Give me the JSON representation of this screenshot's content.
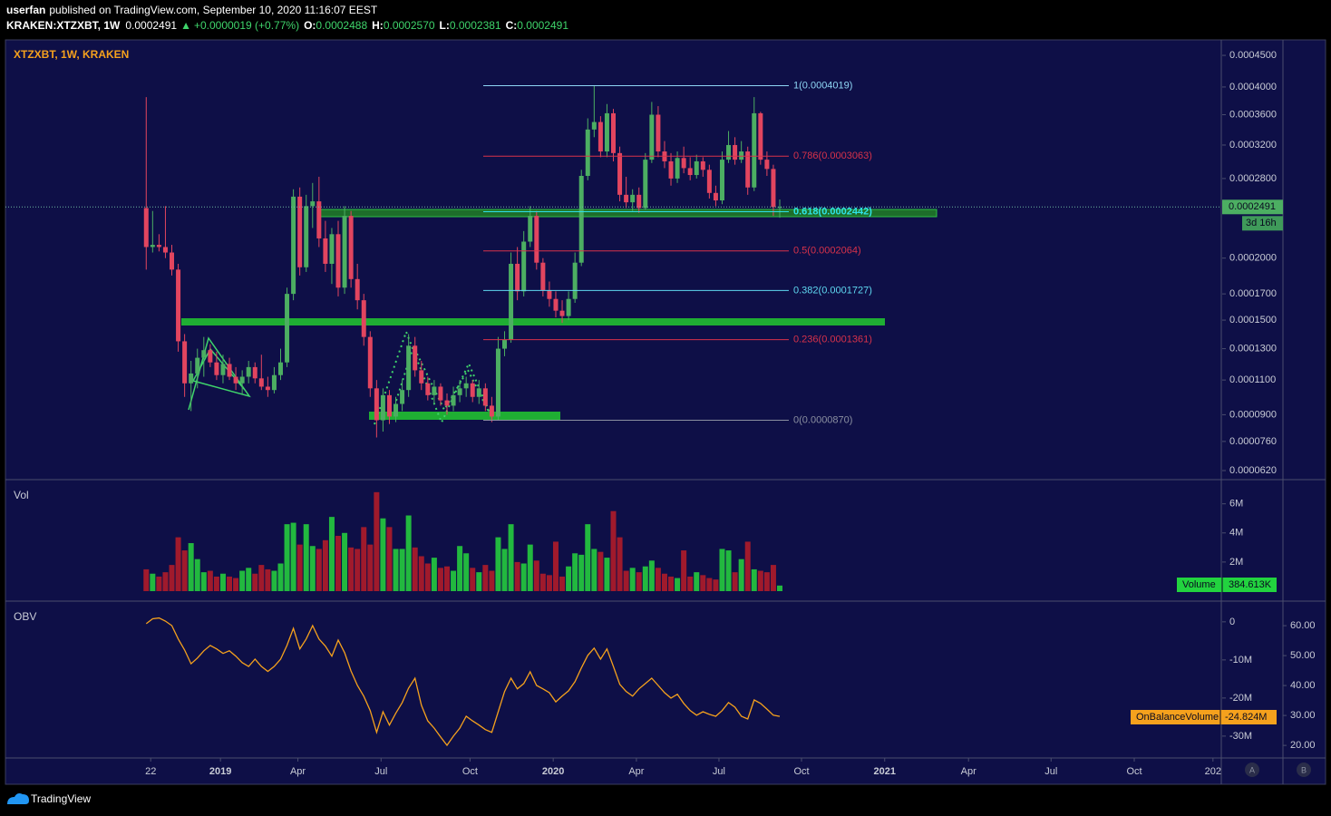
{
  "header": {
    "user": "userfan",
    "published": "published on TradingView.com, September 10, 2020 11:16:07 EEST",
    "symbol": "KRAKEN:XTZXBT, 1W",
    "last": "0.0002491",
    "arrow": "▲",
    "change": "+0.0000019 (+0.77%)",
    "ohlc": [
      {
        "key": "O:",
        "value": "0.0002488"
      },
      {
        "key": "H:",
        "value": "0.0002570"
      },
      {
        "key": "L:",
        "value": "0.0002381"
      },
      {
        "key": "C:",
        "value": "0.0002491"
      }
    ]
  },
  "chart_data": [
    {
      "type": "candlestick",
      "title": "XTZXBT, 1W, KRAKEN",
      "up_color": "#4cae62",
      "down_color": "#e2455f",
      "log_scale": true,
      "ohlc": [
        [
          0.000248,
          0.000385,
          0.00019,
          0.00021
        ],
        [
          0.00021,
          0.000245,
          0.000205,
          0.000212
        ],
        [
          0.000212,
          0.000222,
          0.000206,
          0.00021
        ],
        [
          0.00021,
          0.00025,
          0.0002,
          0.000205
        ],
        [
          0.000205,
          0.000212,
          0.000185,
          0.00019
        ],
        [
          0.00019,
          0.000195,
          0.000128,
          0.000135
        ],
        [
          0.000135,
          0.00014,
          0.0001,
          0.000108
        ],
        [
          0.000108,
          0.000122,
          9.2e-05,
          0.000114
        ],
        [
          0.000114,
          0.00013,
          0.000105,
          0.000124
        ],
        [
          0.000124,
          0.000138,
          0.000112,
          0.000129
        ],
        [
          0.000129,
          0.000133,
          0.000118,
          0.000121
        ],
        [
          0.000121,
          0.000128,
          0.00011,
          0.000113
        ],
        [
          0.000113,
          0.000126,
          0.000108,
          0.00012
        ],
        [
          0.00012,
          0.000124,
          0.00011,
          0.000112
        ],
        [
          0.000112,
          0.000118,
          0.000104,
          0.000108
        ],
        [
          0.000108,
          0.000116,
          0.000102,
          0.000112
        ],
        [
          0.000112,
          0.000122,
          0.000108,
          0.000118
        ],
        [
          0.000118,
          0.000121,
          0.000108,
          0.000111
        ],
        [
          0.000111,
          0.000126,
          0.000104,
          0.000106
        ],
        [
          0.000106,
          0.000112,
          0.0001,
          0.000104
        ],
        [
          0.000104,
          0.000118,
          0.000102,
          0.000113
        ],
        [
          0.000113,
          0.00013,
          0.00011,
          0.000121
        ],
        [
          0.000121,
          0.000175,
          0.000118,
          0.00017
        ],
        [
          0.00017,
          0.000268,
          0.000165,
          0.00026
        ],
        [
          0.00026,
          0.00027,
          0.000185,
          0.000192
        ],
        [
          0.000192,
          0.000262,
          0.000188,
          0.00025
        ],
        [
          0.00025,
          0.000275,
          0.000228,
          0.000255
        ],
        [
          0.000255,
          0.000282,
          0.00021,
          0.000218
        ],
        [
          0.000218,
          0.000235,
          0.000188,
          0.000195
        ],
        [
          0.000195,
          0.000228,
          0.000178,
          0.000222
        ],
        [
          0.000222,
          0.000235,
          0.000168,
          0.000175
        ],
        [
          0.000175,
          0.00025,
          0.00017,
          0.00024
        ],
        [
          0.00024,
          0.000245,
          0.000175,
          0.000182
        ],
        [
          0.000182,
          0.000195,
          0.000158,
          0.000165
        ],
        [
          0.000165,
          0.00017,
          0.000132,
          0.000138
        ],
        [
          0.000138,
          0.000142,
          0.0001,
          0.000105
        ],
        [
          0.000105,
          0.00011,
          7.8e-05,
          8.7e-05
        ],
        [
          8.7e-05,
          0.000105,
          8.1e-05,
          0.000101
        ],
        [
          0.000101,
          0.000104,
          8.5e-05,
          8.9e-05
        ],
        [
          8.9e-05,
          0.0001,
          8.6e-05,
          9.6e-05
        ],
        [
          9.6e-05,
          0.00011,
          9.2e-05,
          0.000104
        ],
        [
          0.000104,
          0.00014,
          0.0001,
          0.000132
        ],
        [
          0.000132,
          0.000138,
          0.000112,
          0.000116
        ],
        [
          0.000116,
          0.000122,
          0.000104,
          0.000108
        ],
        [
          0.000108,
          0.000112,
          9.8e-05,
          0.000101
        ],
        [
          0.000101,
          0.00011,
          9.6e-05,
          0.000106
        ],
        [
          0.000106,
          0.000108,
          9.5e-05,
          9.8e-05
        ],
        [
          9.8e-05,
          0.000102,
          9e-05,
          9.5e-05
        ],
        [
          9.5e-05,
          0.000106,
          9.2e-05,
          0.000101
        ],
        [
          0.000101,
          0.00011,
          9.7e-05,
          0.000105
        ],
        [
          0.000105,
          0.000112,
          0.0001,
          0.000108
        ],
        [
          0.000108,
          0.00011,
          9.7e-05,
          0.0001
        ],
        [
          0.0001,
          0.00011,
          9.6e-05,
          0.000105
        ],
        [
          0.000105,
          0.000108,
          9.2e-05,
          9.5e-05
        ],
        [
          9.5e-05,
          0.0001,
          8.6e-05,
          8.9e-05
        ],
        [
          8.9e-05,
          0.000138,
          8.7e-05,
          0.00013
        ],
        [
          0.00013,
          0.000142,
          0.000125,
          0.000136
        ],
        [
          0.000136,
          0.000205,
          0.000134,
          0.000195
        ],
        [
          0.000195,
          0.00021,
          0.000165,
          0.000172
        ],
        [
          0.000172,
          0.000225,
          0.000168,
          0.000215
        ],
        [
          0.000215,
          0.00025,
          0.00021,
          0.00024
        ],
        [
          0.00024,
          0.000245,
          0.00019,
          0.000196
        ],
        [
          0.000196,
          0.0002,
          0.000168,
          0.000173
        ],
        [
          0.000173,
          0.00018,
          0.00016,
          0.000166
        ],
        [
          0.000166,
          0.000172,
          0.000152,
          0.000157
        ],
        [
          0.000157,
          0.000165,
          0.000148,
          0.000153
        ],
        [
          0.000153,
          0.000172,
          0.00015,
          0.000166
        ],
        [
          0.000166,
          0.000205,
          0.000163,
          0.000196
        ],
        [
          0.000196,
          0.00029,
          0.000193,
          0.000283
        ],
        [
          0.000283,
          0.000355,
          0.000278,
          0.00034
        ],
        [
          0.00034,
          0.000402,
          0.00033,
          0.00035
        ],
        [
          0.00035,
          0.000358,
          0.000305,
          0.000312
        ],
        [
          0.000312,
          0.000375,
          0.000305,
          0.000362
        ],
        [
          0.000362,
          0.000368,
          0.0003,
          0.00031
        ],
        [
          0.00031,
          0.000318,
          0.000255,
          0.000262
        ],
        [
          0.000262,
          0.000282,
          0.000248,
          0.000254
        ],
        [
          0.000254,
          0.000268,
          0.000245,
          0.000262
        ],
        [
          0.000262,
          0.00027,
          0.000243,
          0.000248
        ],
        [
          0.000248,
          0.00031,
          0.000246,
          0.000302
        ],
        [
          0.000302,
          0.000378,
          0.000298,
          0.00036
        ],
        [
          0.00036,
          0.000372,
          0.000305,
          0.000312
        ],
        [
          0.000312,
          0.000325,
          0.000292,
          0.0003
        ],
        [
          0.0003,
          0.00031,
          0.000272,
          0.00028
        ],
        [
          0.00028,
          0.000312,
          0.000275,
          0.000304
        ],
        [
          0.000304,
          0.000318,
          0.000286,
          0.000292
        ],
        [
          0.000292,
          0.000305,
          0.000278,
          0.000284
        ],
        [
          0.000284,
          0.000308,
          0.00028,
          0.0003
        ],
        [
          0.0003,
          0.000305,
          0.000282,
          0.00029
        ],
        [
          0.00029,
          0.000296,
          0.000258,
          0.000264
        ],
        [
          0.000264,
          0.000272,
          0.00025,
          0.000256
        ],
        [
          0.000256,
          0.000312,
          0.000252,
          0.000302
        ],
        [
          0.000302,
          0.000338,
          0.000298,
          0.00032
        ],
        [
          0.00032,
          0.00033,
          0.000296,
          0.000302
        ],
        [
          0.000302,
          0.000325,
          0.000298,
          0.000312
        ],
        [
          0.000312,
          0.000318,
          0.000262,
          0.00027
        ],
        [
          0.00027,
          0.000385,
          0.000266,
          0.000362
        ],
        [
          0.000362,
          0.000364,
          0.000296,
          0.000302
        ],
        [
          0.000302,
          0.000312,
          0.000283,
          0.000291
        ],
        [
          0.000291,
          0.000296,
          0.00024,
          0.000249
        ],
        [
          0.0002488,
          0.000257,
          0.0002381,
          0.0002491
        ]
      ],
      "xlim": [
        -22,
        168
      ],
      "xticks": [
        {
          "value": 0.7,
          "label": "22"
        },
        {
          "value": 11.6,
          "label": "2019"
        },
        {
          "value": 23.7,
          "label": "Apr"
        },
        {
          "value": 36.7,
          "label": "Jul"
        },
        {
          "value": 50.6,
          "label": "Oct"
        },
        {
          "value": 63.6,
          "label": "2020"
        },
        {
          "value": 76.6,
          "label": "Apr"
        },
        {
          "value": 89.5,
          "label": "Jul"
        },
        {
          "value": 102.4,
          "label": "Oct"
        },
        {
          "value": 115.4,
          "label": "2021"
        },
        {
          "value": 128.5,
          "label": "Apr"
        },
        {
          "value": 141.4,
          "label": "Jul"
        },
        {
          "value": 154.4,
          "label": "Oct"
        },
        {
          "value": 166.7,
          "label": "202"
        }
      ],
      "ylim": [
        5.83e-05,
        0.0004763
      ],
      "yticks": [
        {
          "value": 6.2e-05,
          "label": "0.0000620"
        },
        {
          "value": 7.6e-05,
          "label": "0.0000760"
        },
        {
          "value": 9e-05,
          "label": "0.0000900"
        },
        {
          "value": 0.00011,
          "label": "0.0001100"
        },
        {
          "value": 0.00013,
          "label": "0.0001300"
        },
        {
          "value": 0.00015,
          "label": "0.0001500"
        },
        {
          "value": 0.00017,
          "label": "0.0001700"
        },
        {
          "value": 0.0002,
          "label": "0.0002000"
        },
        {
          "value": 0.00028,
          "label": "0.0002800"
        },
        {
          "value": 0.00032,
          "label": "0.0003200"
        },
        {
          "value": 0.00036,
          "label": "0.0003600"
        },
        {
          "value": 0.0004,
          "label": "0.0004000"
        },
        {
          "value": 0.00045,
          "label": "0.0004500"
        }
      ],
      "fib_levels": [
        {
          "label": "1(0.0004019)",
          "value": 0.0004019,
          "color": "#8fd6f5"
        },
        {
          "label": "0.786(0.0003063)",
          "value": 0.0003063,
          "color": "#d8324a"
        },
        {
          "label": "0.618(0.0002442)",
          "value": 0.0002442,
          "color": "#2fe3e8"
        },
        {
          "label": "0.5(0.0002064)",
          "value": 0.0002064,
          "color": "#d8324a"
        },
        {
          "label": "0.382(0.0001727)",
          "value": 0.0001727,
          "color": "#5fd8f0"
        },
        {
          "label": "0.236(0.0001361)",
          "value": 0.0001361,
          "color": "#d8324a"
        },
        {
          "label": "0(0.0000870)",
          "value": 8.7e-05,
          "color": "#8a8fa0"
        }
      ],
      "last_price": 0.0002491,
      "countdown": "3d 16h"
    },
    {
      "type": "bar",
      "title": "Vol",
      "values": [
        1.5,
        1.2,
        1.0,
        1.3,
        1.8,
        3.7,
        2.8,
        3.3,
        2.2,
        1.3,
        1.4,
        1.0,
        1.2,
        1.0,
        0.9,
        1.4,
        1.6,
        1.2,
        1.8,
        1.5,
        1.4,
        1.9,
        4.6,
        4.7,
        3.2,
        4.6,
        3.1,
        2.9,
        3.5,
        5.1,
        3.8,
        4.0,
        3.0,
        2.9,
        4.4,
        3.2,
        6.8,
        5.0,
        4.4,
        2.9,
        2.9,
        5.2,
        3.0,
        2.4,
        1.9,
        2.3,
        1.6,
        1.7,
        1.4,
        3.1,
        2.6,
        1.6,
        1.3,
        1.8,
        1.4,
        3.7,
        2.9,
        4.6,
        2.0,
        1.9,
        3.2,
        2.1,
        1.2,
        1.1,
        3.4,
        1.0,
        1.7,
        2.6,
        2.5,
        4.6,
        2.9,
        2.7,
        2.3,
        5.5,
        3.7,
        1.4,
        1.6,
        1.3,
        1.7,
        2.1,
        1.6,
        1.2,
        1.0,
        0.9,
        2.8,
        1.0,
        1.3,
        1.1,
        0.9,
        0.8,
        2.9,
        2.8,
        1.3,
        2.2,
        3.4,
        1.5,
        1.4,
        1.3,
        1.8,
        0.384613
      ],
      "up_color": "#22b83f",
      "down_color": "#a01a2c",
      "ylim": [
        0,
        7.6
      ],
      "yticks": [
        {
          "value": 2,
          "label": "2M"
        },
        {
          "value": 4,
          "label": "4M"
        },
        {
          "value": 6,
          "label": "6M"
        }
      ],
      "legend": {
        "name": "Volume",
        "value_label": "384.613K",
        "color": "#22d33f"
      }
    },
    {
      "type": "line",
      "title": "OBV",
      "color": "#f5a11d",
      "values": [
        -0.5,
        0.8,
        1.0,
        0.2,
        -1.0,
        -4.5,
        -7.4,
        -11.0,
        -9.5,
        -7.6,
        -6.2,
        -7.1,
        -8.3,
        -7.6,
        -9.0,
        -10.7,
        -11.7,
        -9.8,
        -11.7,
        -13.0,
        -11.7,
        -9.8,
        -6.2,
        -1.7,
        -7.1,
        -4.5,
        -1.0,
        -4.5,
        -6.4,
        -9.0,
        -4.8,
        -8.1,
        -12.9,
        -16.7,
        -19.5,
        -23.3,
        -29.0,
        -23.6,
        -27.1,
        -24.0,
        -21.2,
        -17.4,
        -14.8,
        -21.9,
        -26.0,
        -27.9,
        -30.2,
        -32.4,
        -30.0,
        -27.9,
        -24.8,
        -26.0,
        -27.1,
        -28.3,
        -29.0,
        -23.6,
        -18.3,
        -14.8,
        -17.6,
        -16.2,
        -13.1,
        -16.7,
        -17.6,
        -18.6,
        -21.0,
        -19.5,
        -18.1,
        -15.7,
        -12.1,
        -8.8,
        -6.9,
        -9.8,
        -7.1,
        -11.7,
        -16.4,
        -18.3,
        -19.5,
        -17.6,
        -16.2,
        -14.8,
        -16.7,
        -18.6,
        -20.0,
        -19.0,
        -21.4,
        -23.3,
        -24.5,
        -23.6,
        -24.3,
        -24.8,
        -23.3,
        -21.2,
        -22.4,
        -24.8,
        -25.5,
        -20.5,
        -21.4,
        -22.9,
        -24.5,
        -24.824
      ],
      "ylim": [
        -35.5,
        5.2
      ],
      "yticks": [
        0,
        {
          "value": -10,
          "label": "-10M"
        },
        {
          "value": -20,
          "label": "-20M"
        },
        {
          "value": -30,
          "label": "-30M"
        }
      ],
      "y2lim": [
        16.1,
        67.9
      ],
      "y2ticks": [
        {
          "value": 20,
          "label": "20.00"
        },
        {
          "value": 30,
          "label": "30.00"
        },
        {
          "value": 40,
          "label": "40.00"
        },
        {
          "value": 50,
          "label": "50.00"
        },
        {
          "value": 60,
          "label": "60.00"
        }
      ],
      "legend": {
        "name": "OnBalanceVolume",
        "value_label": "-24.824M"
      }
    }
  ],
  "footer": {
    "brand": "TradingView",
    "buttons": [
      "A",
      "B"
    ]
  }
}
